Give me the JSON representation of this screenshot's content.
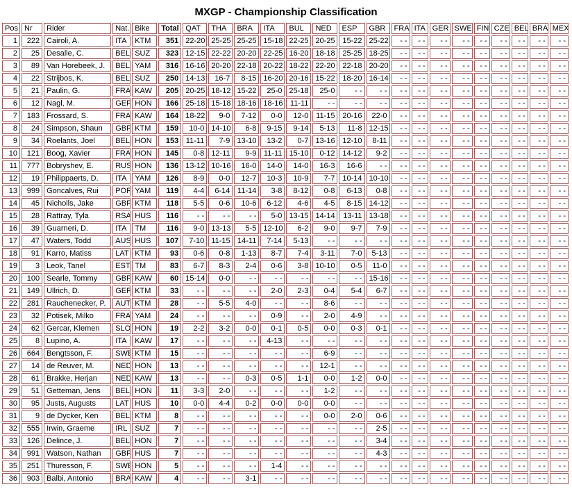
{
  "title": "MXGP - Championship Classification",
  "grid_color": "#9b5f5f",
  "columns": [
    {
      "key": "pos",
      "label": "Pos"
    },
    {
      "key": "nr",
      "label": "Nr"
    },
    {
      "key": "rider",
      "label": "Rider"
    },
    {
      "key": "nat",
      "label": "Nat."
    },
    {
      "key": "bike",
      "label": "Bike"
    },
    {
      "key": "total",
      "label": "Total"
    },
    {
      "key": "qat",
      "label": "QAT"
    },
    {
      "key": "tha",
      "label": "THA"
    },
    {
      "key": "bra",
      "label": "BRA"
    },
    {
      "key": "ita",
      "label": "ITA"
    },
    {
      "key": "bul",
      "label": "BUL"
    },
    {
      "key": "ned",
      "label": "NED"
    },
    {
      "key": "esp",
      "label": "ESP"
    },
    {
      "key": "gbr",
      "label": "GBR"
    },
    {
      "key": "fra",
      "label": "FRA"
    },
    {
      "key": "ita2",
      "label": "ITA"
    },
    {
      "key": "ger",
      "label": "GER"
    },
    {
      "key": "swe",
      "label": "SWE"
    },
    {
      "key": "fin",
      "label": "FIN"
    },
    {
      "key": "cze",
      "label": "CZE"
    },
    {
      "key": "bel",
      "label": "BEL"
    },
    {
      "key": "bra2",
      "label": "BRA"
    },
    {
      "key": "mex",
      "label": "MEX"
    }
  ],
  "rows": [
    {
      "pos": 1,
      "nr": 222,
      "rider": "Cairoli, A.",
      "nat": "ITA",
      "bike": "KTM",
      "total": 351,
      "points": [
        "22-20",
        "25-25",
        "25-25",
        "15-18",
        "22-25",
        "20-25",
        "15-22",
        "25-22",
        "- -",
        "- -",
        "- -",
        "- -",
        "- -",
        "- -",
        "- -",
        "- -",
        "- -"
      ]
    },
    {
      "pos": 2,
      "nr": 25,
      "rider": "Desalle, C.",
      "nat": "BEL",
      "bike": "SUZ",
      "total": 323,
      "points": [
        "12-15",
        "22-22",
        "20-20",
        "22-25",
        "16-20",
        "18-18",
        "25-25",
        "18-25",
        "- -",
        "- -",
        "- -",
        "- -",
        "- -",
        "- -",
        "- -",
        "- -",
        "- -"
      ]
    },
    {
      "pos": 3,
      "nr": 89,
      "rider": "Van Horebeek, J.",
      "nat": "BEL",
      "bike": "YAM",
      "total": 316,
      "points": [
        "16-16",
        "20-20",
        "22-18",
        "20-22",
        "18-22",
        "22-20",
        "22-18",
        "20-20",
        "- -",
        "- -",
        "- -",
        "- -",
        "- -",
        "- -",
        "- -",
        "- -",
        "- -"
      ]
    },
    {
      "pos": 4,
      "nr": 22,
      "rider": "Strijbos, K.",
      "nat": "BEL",
      "bike": "SUZ",
      "total": 250,
      "points": [
        "14-13",
        "16-7",
        "8-15",
        "16-20",
        "20-16",
        "15-22",
        "18-20",
        "16-14",
        "- -",
        "- -",
        "- -",
        "- -",
        "- -",
        "- -",
        "- -",
        "- -",
        "- -"
      ]
    },
    {
      "pos": 5,
      "nr": 21,
      "rider": "Paulin, G.",
      "nat": "FRA",
      "bike": "KAW",
      "total": 205,
      "points": [
        "20-25",
        "18-12",
        "15-22",
        "25-0",
        "25-18",
        "25-0",
        "- -",
        "- -",
        "- -",
        "- -",
        "- -",
        "- -",
        "- -",
        "- -",
        "- -",
        "- -",
        "- -"
      ]
    },
    {
      "pos": 6,
      "nr": 12,
      "rider": "Nagl, M.",
      "nat": "GER",
      "bike": "HON",
      "total": 166,
      "points": [
        "25-18",
        "15-18",
        "18-16",
        "18-16",
        "11-11",
        "- -",
        "- -",
        "- -",
        "- -",
        "- -",
        "- -",
        "- -",
        "- -",
        "- -",
        "- -",
        "- -",
        "- -"
      ]
    },
    {
      "pos": 7,
      "nr": 183,
      "rider": "Frossard, S.",
      "nat": "FRA",
      "bike": "KAW",
      "total": 164,
      "points": [
        "18-22",
        "9-0",
        "7-12",
        "0-0",
        "12-0",
        "11-15",
        "20-16",
        "22-0",
        "- -",
        "- -",
        "- -",
        "- -",
        "- -",
        "- -",
        "- -",
        "- -",
        "- -"
      ]
    },
    {
      "pos": 8,
      "nr": 24,
      "rider": "Simpson, Shaun",
      "nat": "GBR",
      "bike": "KTM",
      "total": 159,
      "points": [
        "10-0",
        "14-10",
        "6-8",
        "9-15",
        "9-14",
        "5-13",
        "11-8",
        "12-15",
        "- -",
        "- -",
        "- -",
        "- -",
        "- -",
        "- -",
        "- -",
        "- -",
        "- -"
      ]
    },
    {
      "pos": 9,
      "nr": 34,
      "rider": "Roelants, Joel",
      "nat": "BEL",
      "bike": "HON",
      "total": 153,
      "points": [
        "11-11",
        "7-9",
        "13-10",
        "13-2",
        "0-7",
        "13-16",
        "12-10",
        "8-11",
        "- -",
        "- -",
        "- -",
        "- -",
        "- -",
        "- -",
        "- -",
        "- -",
        "- -"
      ]
    },
    {
      "pos": 10,
      "nr": 121,
      "rider": "Boog, Xavier",
      "nat": "FRA",
      "bike": "HON",
      "total": 145,
      "points": [
        "0-8",
        "12-11",
        "9-9",
        "11-11",
        "15-10",
        "0-12",
        "14-12",
        "9-2",
        "- -",
        "- -",
        "- -",
        "- -",
        "- -",
        "- -",
        "- -",
        "- -",
        "- -"
      ]
    },
    {
      "pos": 11,
      "nr": 777,
      "rider": "Bobryshev, E.",
      "nat": "RUS",
      "bike": "HON",
      "total": 136,
      "points": [
        "13-12",
        "10-16",
        "16-0",
        "14-0",
        "14-0",
        "16-3",
        "16-6",
        "- -",
        "- -",
        "- -",
        "- -",
        "- -",
        "- -",
        "- -",
        "- -",
        "- -",
        "- -"
      ]
    },
    {
      "pos": 12,
      "nr": 19,
      "rider": "Philippaerts, D.",
      "nat": "ITA",
      "bike": "YAM",
      "total": 126,
      "points": [
        "8-9",
        "0-0",
        "12-7",
        "10-3",
        "10-9",
        "7-7",
        "10-14",
        "10-10",
        "- -",
        "- -",
        "- -",
        "- -",
        "- -",
        "- -",
        "- -",
        "- -",
        "- -"
      ]
    },
    {
      "pos": 13,
      "nr": 999,
      "rider": "Goncalves, Rui",
      "nat": "POR",
      "bike": "YAM",
      "total": 119,
      "points": [
        "4-4",
        "6-14",
        "11-14",
        "3-8",
        "8-12",
        "0-8",
        "6-13",
        "0-8",
        "- -",
        "- -",
        "- -",
        "- -",
        "- -",
        "- -",
        "- -",
        "- -",
        "- -"
      ]
    },
    {
      "pos": 14,
      "nr": 45,
      "rider": "Nicholls, Jake",
      "nat": "GBR",
      "bike": "KTM",
      "total": 118,
      "points": [
        "5-5",
        "0-6",
        "10-6",
        "6-12",
        "4-6",
        "4-5",
        "8-15",
        "14-12",
        "- -",
        "- -",
        "- -",
        "- -",
        "- -",
        "- -",
        "- -",
        "- -",
        "- -"
      ]
    },
    {
      "pos": 15,
      "nr": 28,
      "rider": "Rattray, Tyla",
      "nat": "RSA",
      "bike": "HUS",
      "total": 116,
      "points": [
        "- -",
        "- -",
        "- -",
        "5-0",
        "13-15",
        "14-14",
        "13-11",
        "13-18",
        "- -",
        "- -",
        "- -",
        "- -",
        "- -",
        "- -",
        "- -",
        "- -",
        "- -"
      ]
    },
    {
      "pos": 16,
      "nr": 39,
      "rider": "Guarneri, D.",
      "nat": "ITA",
      "bike": "TM",
      "total": 116,
      "points": [
        "9-0",
        "13-13",
        "5-5",
        "12-10",
        "6-2",
        "9-0",
        "9-7",
        "7-9",
        "- -",
        "- -",
        "- -",
        "- -",
        "- -",
        "- -",
        "- -",
        "- -",
        "- -"
      ]
    },
    {
      "pos": 17,
      "nr": 47,
      "rider": "Waters, Todd",
      "nat": "AUS",
      "bike": "HUS",
      "total": 107,
      "points": [
        "7-10",
        "11-15",
        "14-11",
        "7-14",
        "5-13",
        "- -",
        "- -",
        "- -",
        "- -",
        "- -",
        "- -",
        "- -",
        "- -",
        "- -",
        "- -",
        "- -",
        "- -"
      ]
    },
    {
      "pos": 18,
      "nr": 91,
      "rider": "Karro, Matiss",
      "nat": "LAT",
      "bike": "KTM",
      "total": 93,
      "points": [
        "0-6",
        "0-8",
        "1-13",
        "8-7",
        "7-4",
        "3-11",
        "7-0",
        "5-13",
        "- -",
        "- -",
        "- -",
        "- -",
        "- -",
        "- -",
        "- -",
        "- -",
        "- -"
      ]
    },
    {
      "pos": 19,
      "nr": 3,
      "rider": "Leok, Tanel",
      "nat": "EST",
      "bike": "TM",
      "total": 83,
      "points": [
        "6-7",
        "8-3",
        "2-4",
        "0-6",
        "3-8",
        "10-10",
        "0-5",
        "11-0",
        "- -",
        "- -",
        "- -",
        "- -",
        "- -",
        "- -",
        "- -",
        "- -",
        "- -"
      ]
    },
    {
      "pos": 20,
      "nr": 100,
      "rider": "Searle, Tommy",
      "nat": "GBR",
      "bike": "KAW",
      "total": 60,
      "points": [
        "15-14",
        "0-0",
        "- -",
        "- -",
        "- -",
        "- -",
        "- -",
        "15-16",
        "- -",
        "- -",
        "- -",
        "- -",
        "- -",
        "- -",
        "- -",
        "- -",
        "- -"
      ]
    },
    {
      "pos": 21,
      "nr": 149,
      "rider": "Ullrich, D.",
      "nat": "GER",
      "bike": "KTM",
      "total": 33,
      "points": [
        "- -",
        "- -",
        "- -",
        "2-0",
        "2-3",
        "0-4",
        "5-4",
        "6-7",
        "- -",
        "- -",
        "- -",
        "- -",
        "- -",
        "- -",
        "- -",
        "- -",
        "- -"
      ]
    },
    {
      "pos": 22,
      "nr": 281,
      "rider": "Rauchenecker, P.",
      "nat": "AUT",
      "bike": "KTM",
      "total": 28,
      "points": [
        "- -",
        "5-5",
        "4-0",
        "- -",
        "- -",
        "8-6",
        "- -",
        "- -",
        "- -",
        "- -",
        "- -",
        "- -",
        "- -",
        "- -",
        "- -",
        "- -",
        "- -"
      ]
    },
    {
      "pos": 23,
      "nr": 32,
      "rider": "Potisek, Milko",
      "nat": "FRA",
      "bike": "YAM",
      "total": 24,
      "points": [
        "- -",
        "- -",
        "- -",
        "0-9",
        "- -",
        "2-0",
        "4-9",
        "- -",
        "- -",
        "- -",
        "- -",
        "- -",
        "- -",
        "- -",
        "- -",
        "- -",
        "- -"
      ]
    },
    {
      "pos": 24,
      "nr": 62,
      "rider": "Gercar, Klemen",
      "nat": "SLO",
      "bike": "HON",
      "total": 19,
      "points": [
        "2-2",
        "3-2",
        "0-0",
        "0-1",
        "0-5",
        "0-0",
        "0-3",
        "0-1",
        "- -",
        "- -",
        "- -",
        "- -",
        "- -",
        "- -",
        "- -",
        "- -",
        "- -"
      ]
    },
    {
      "pos": 25,
      "nr": 8,
      "rider": "Lupino, A.",
      "nat": "ITA",
      "bike": "KAW",
      "total": 17,
      "points": [
        "- -",
        "- -",
        "- -",
        "4-13",
        "- -",
        "- -",
        "- -",
        "- -",
        "- -",
        "- -",
        "- -",
        "- -",
        "- -",
        "- -",
        "- -",
        "- -",
        "- -"
      ]
    },
    {
      "pos": 26,
      "nr": 664,
      "rider": "Bengtsson, F.",
      "nat": "SWE",
      "bike": "KTM",
      "total": 15,
      "points": [
        "- -",
        "- -",
        "- -",
        "- -",
        "- -",
        "6-9",
        "- -",
        "- -",
        "- -",
        "- -",
        "- -",
        "- -",
        "- -",
        "- -",
        "- -",
        "- -",
        "- -"
      ]
    },
    {
      "pos": 27,
      "nr": 14,
      "rider": "de Reuver, M.",
      "nat": "NED",
      "bike": "HON",
      "total": 13,
      "points": [
        "- -",
        "- -",
        "- -",
        "- -",
        "- -",
        "12-1",
        "- -",
        "- -",
        "- -",
        "- -",
        "- -",
        "- -",
        "- -",
        "- -",
        "- -",
        "- -",
        "- -"
      ]
    },
    {
      "pos": 28,
      "nr": 61,
      "rider": "Brakke, Herjan",
      "nat": "NED",
      "bike": "KAW",
      "total": 13,
      "points": [
        "- -",
        "- -",
        "0-3",
        "0-5",
        "1-1",
        "0-0",
        "1-2",
        "0-0",
        "- -",
        "- -",
        "- -",
        "- -",
        "- -",
        "- -",
        "- -",
        "- -",
        "- -"
      ]
    },
    {
      "pos": 29,
      "nr": 51,
      "rider": "Getteman, Jens",
      "nat": "BEL",
      "bike": "HON",
      "total": 11,
      "points": [
        "3-3",
        "2-0",
        "- -",
        "- -",
        "- -",
        "1-2",
        "- -",
        "- -",
        "- -",
        "- -",
        "- -",
        "- -",
        "- -",
        "- -",
        "- -",
        "- -",
        "- -"
      ]
    },
    {
      "pos": 30,
      "nr": 95,
      "rider": "Justs, Augusts",
      "nat": "LAT",
      "bike": "HUS",
      "total": 10,
      "points": [
        "0-0",
        "4-4",
        "0-2",
        "0-0",
        "0-0",
        "0-0",
        "- -",
        "- -",
        "- -",
        "- -",
        "- -",
        "- -",
        "- -",
        "- -",
        "- -",
        "- -",
        "- -"
      ]
    },
    {
      "pos": 31,
      "nr": 9,
      "rider": "de Dycker, Ken",
      "nat": "BEL",
      "bike": "KTM",
      "total": 8,
      "points": [
        "- -",
        "- -",
        "- -",
        "- -",
        "- -",
        "0-0",
        "2-0",
        "0-6",
        "- -",
        "- -",
        "- -",
        "- -",
        "- -",
        "- -",
        "- -",
        "- -",
        "- -"
      ]
    },
    {
      "pos": 32,
      "nr": 555,
      "rider": "Irwin, Graeme",
      "nat": "IRL",
      "bike": "SUZ",
      "total": 7,
      "points": [
        "- -",
        "- -",
        "- -",
        "- -",
        "- -",
        "- -",
        "- -",
        "2-5",
        "- -",
        "- -",
        "- -",
        "- -",
        "- -",
        "- -",
        "- -",
        "- -",
        "- -"
      ]
    },
    {
      "pos": 33,
      "nr": 126,
      "rider": "Delince, J.",
      "nat": "BEL",
      "bike": "HON",
      "total": 7,
      "points": [
        "- -",
        "- -",
        "- -",
        "- -",
        "- -",
        "- -",
        "- -",
        "3-4",
        "- -",
        "- -",
        "- -",
        "- -",
        "- -",
        "- -",
        "- -",
        "- -",
        "- -"
      ]
    },
    {
      "pos": 34,
      "nr": 991,
      "rider": "Watson, Nathan",
      "nat": "GBR",
      "bike": "HUS",
      "total": 7,
      "points": [
        "- -",
        "- -",
        "- -",
        "- -",
        "- -",
        "- -",
        "- -",
        "4-3",
        "- -",
        "- -",
        "- -",
        "- -",
        "- -",
        "- -",
        "- -",
        "- -",
        "- -"
      ]
    },
    {
      "pos": 35,
      "nr": 251,
      "rider": "Thuresson, F.",
      "nat": "SWE",
      "bike": "HON",
      "total": 5,
      "points": [
        "- -",
        "- -",
        "- -",
        "1-4",
        "- -",
        "- -",
        "- -",
        "- -",
        "- -",
        "- -",
        "- -",
        "- -",
        "- -",
        "- -",
        "- -",
        "- -",
        "- -"
      ]
    },
    {
      "pos": 36,
      "nr": 903,
      "rider": "Balbi, Antonio",
      "nat": "BRA",
      "bike": "KAW",
      "total": 4,
      "points": [
        "- -",
        "- -",
        "3-1",
        "- -",
        "- -",
        "- -",
        "- -",
        "- -",
        "- -",
        "- -",
        "- -",
        "- -",
        "- -",
        "- -",
        "- -",
        "- -",
        "- -"
      ]
    }
  ]
}
